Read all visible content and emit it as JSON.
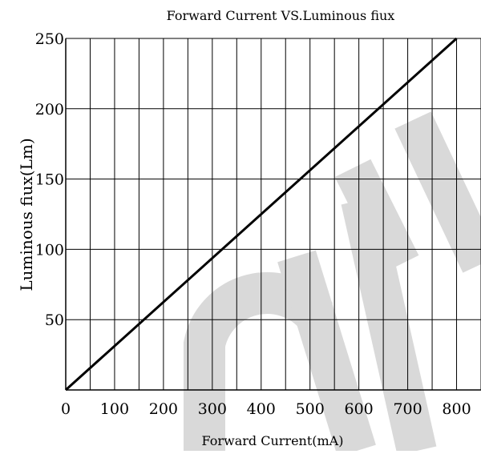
{
  "chart_data": {
    "type": "line",
    "title": "Forward Current VS.Luminous fiux",
    "xlabel": "Forward Current(mA)",
    "ylabel": "Luminous fiux(Lm)",
    "xlim": [
      0,
      850
    ],
    "ylim": [
      0,
      250
    ],
    "x_ticks": [
      0,
      100,
      200,
      300,
      400,
      500,
      600,
      700,
      800
    ],
    "x_tick_labels": [
      "0",
      "100",
      "200",
      "300",
      "400",
      "500",
      "600",
      "700",
      "800"
    ],
    "y_ticks": [
      50,
      100,
      150,
      200,
      250
    ],
    "y_tick_labels": [
      "50",
      "100",
      "150",
      "200",
      "250"
    ],
    "grid": true,
    "x_grid_step": 50,
    "y_grid_step": 50,
    "series": [
      {
        "x": [
          0,
          800
        ],
        "y": [
          0,
          250
        ],
        "color": "#000000"
      }
    ],
    "watermark_letters": "OW",
    "watermark_color": "#d9d9d9"
  }
}
